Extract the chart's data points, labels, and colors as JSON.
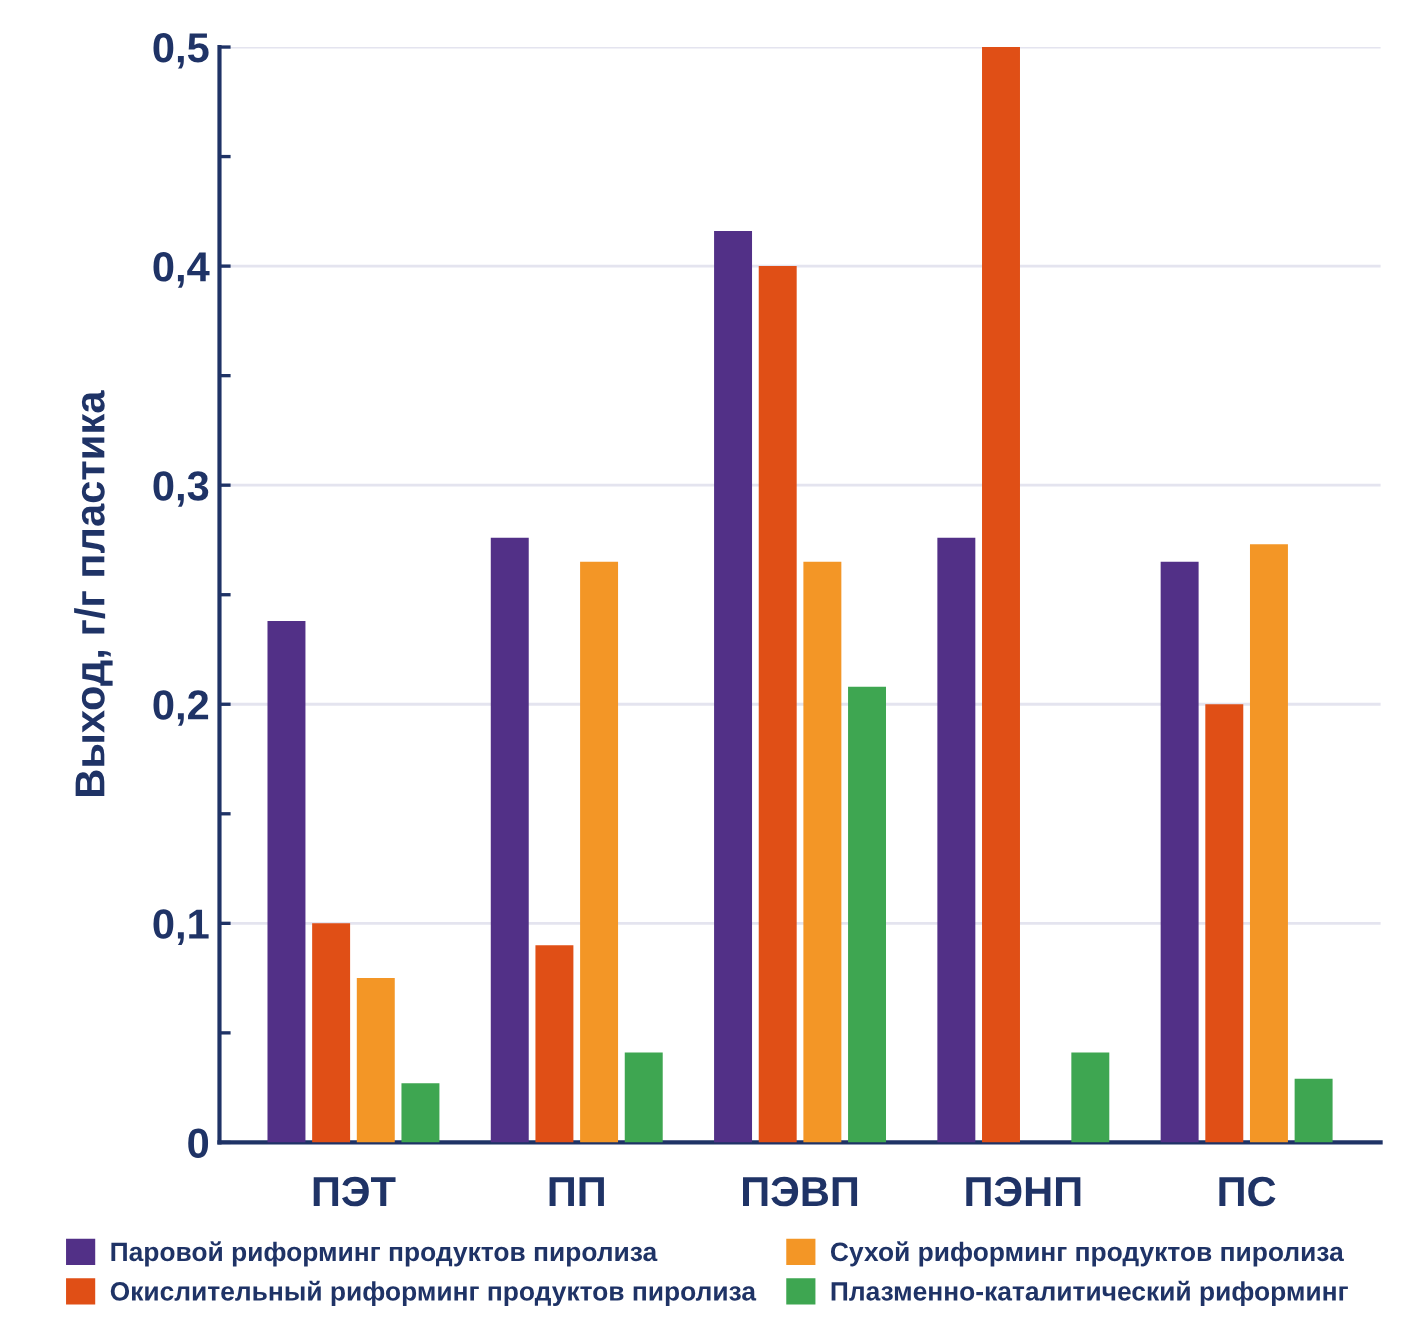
{
  "chart_data": {
    "type": "bar",
    "ylabel": "Выход, г/г пластика",
    "categories": [
      "ПЭТ",
      "ПП",
      "ПЭВП",
      "ПЭНП",
      "ПС"
    ],
    "series": [
      {
        "name": "Паровой риформинг продуктов пиролиза",
        "color": "#523087",
        "values": [
          0.238,
          0.276,
          0.416,
          0.276,
          0.265
        ]
      },
      {
        "name": "Окислительный риформинг продуктов пиролиза",
        "color": "#e04f16",
        "values": [
          0.1,
          0.09,
          0.4,
          0.5,
          0.2
        ]
      },
      {
        "name": "Сухой риформинг продуктов пиролиза",
        "color": "#f39626",
        "values": [
          0.075,
          0.265,
          0.265,
          null,
          0.273
        ]
      },
      {
        "name": "Плазменно-каталитический риформинг",
        "color": "#3ea651",
        "values": [
          0.027,
          0.041,
          0.208,
          0.041,
          0.029
        ]
      }
    ],
    "ylim": [
      0,
      0.5
    ],
    "yticks": [
      0,
      {
        "value": 0.05,
        "label": null
      },
      {
        "value": 0.1,
        "label": "0,1"
      },
      {
        "value": 0.15,
        "label": null
      },
      {
        "value": 0.2,
        "label": "0,2"
      },
      {
        "value": 0.25,
        "label": null
      },
      {
        "value": 0.3,
        "label": "0,3"
      },
      {
        "value": 0.35,
        "label": null
      },
      {
        "value": 0.4,
        "label": "0,4"
      },
      {
        "value": 0.45,
        "label": null
      },
      {
        "value": 0.5,
        "label": "0,5"
      }
    ],
    "grid": "y",
    "legend": "bottom"
  }
}
